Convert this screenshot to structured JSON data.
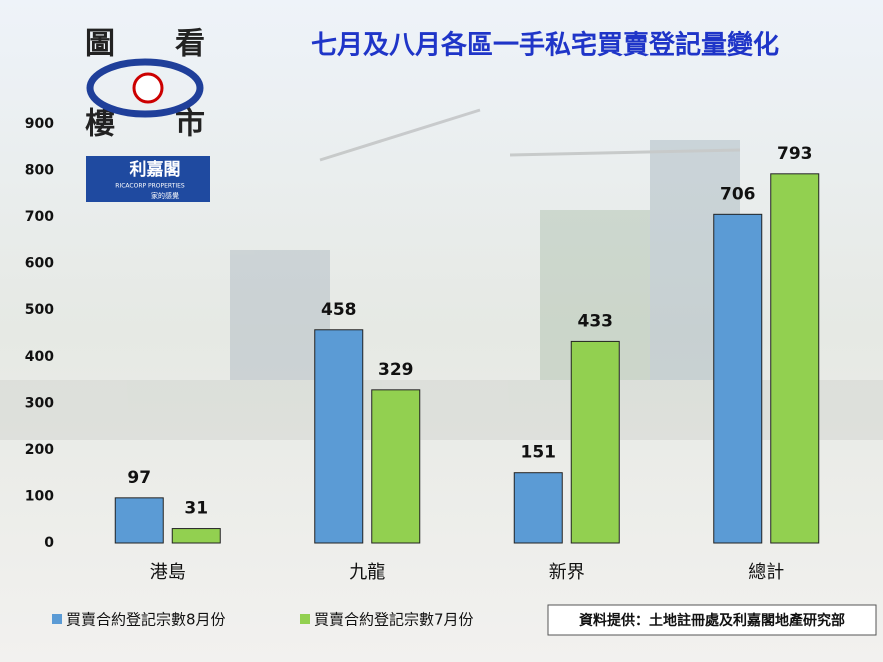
{
  "logo": {
    "chars": [
      "圖",
      "看",
      "樓",
      "市"
    ],
    "brand": "利嘉閣",
    "brand_en": "RICACORP PROPERTIES",
    "slogan": "家的感覺"
  },
  "chart_data": {
    "type": "bar",
    "title": "七月及八月各區一手私宅買賣登記量變化",
    "categories": [
      "港島",
      "九龍",
      "新界",
      "總計"
    ],
    "series": [
      {
        "name": "買賣合約登記宗數8月份",
        "color": "#5b9bd5",
        "values": [
          97,
          458,
          151,
          706
        ]
      },
      {
        "name": "買賣合約登記宗數7月份",
        "color": "#92d050",
        "values": [
          31,
          329,
          433,
          793
        ]
      }
    ],
    "ylim": [
      0,
      900
    ],
    "yticks": [
      0,
      100,
      200,
      300,
      400,
      500,
      600,
      700,
      800,
      900
    ],
    "grid": false,
    "legend": "bottom-left",
    "source": "資料提供：土地註冊處及利嘉閣地產研究部"
  }
}
